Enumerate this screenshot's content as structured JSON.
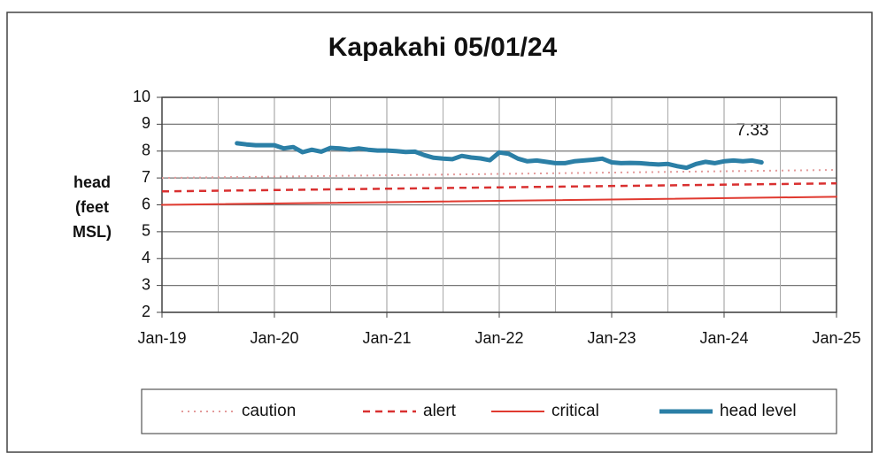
{
  "chart_data": {
    "type": "line",
    "title": "Kapakahi 05/01/24",
    "ylabel": [
      "head",
      "(feet",
      "MSL)"
    ],
    "annotation": "7.33",
    "xlim": [
      "2019-01",
      "2025-01"
    ],
    "xticks": [
      {
        "value": "2019-01",
        "label": "Jan-19"
      },
      {
        "value": "2020-01",
        "label": "Jan-20"
      },
      {
        "value": "2021-01",
        "label": "Jan-21"
      },
      {
        "value": "2022-01",
        "label": "Jan-22"
      },
      {
        "value": "2023-01",
        "label": "Jan-23"
      },
      {
        "value": "2024-01",
        "label": "Jan-24"
      },
      {
        "value": "2025-01",
        "label": "Jan-25"
      }
    ],
    "ylim": [
      2,
      10
    ],
    "yticks": [
      2,
      3,
      4,
      5,
      6,
      7,
      8,
      9,
      10
    ],
    "grid": true,
    "legend": "bottom",
    "series": [
      {
        "name": "caution",
        "color": "#e39a9a",
        "style": "dotted",
        "width": 2,
        "x": [
          "2019-01",
          "2025-01"
        ],
        "values": [
          7.0,
          7.3
        ]
      },
      {
        "name": "alert",
        "color": "#d93030",
        "style": "dashed",
        "width": 2.5,
        "x": [
          "2019-01",
          "2025-01"
        ],
        "values": [
          6.5,
          6.8
        ]
      },
      {
        "name": "critical",
        "color": "#e03a30",
        "style": "solid",
        "width": 2,
        "x": [
          "2019-01",
          "2025-01"
        ],
        "values": [
          6.0,
          6.3
        ]
      },
      {
        "name": "head level",
        "color": "#2b7fa6",
        "style": "solid",
        "width": 5,
        "x": [
          "2019-09",
          "2019-10",
          "2019-11",
          "2019-12",
          "2020-01",
          "2020-02",
          "2020-03",
          "2020-04",
          "2020-05",
          "2020-06",
          "2020-07",
          "2020-08",
          "2020-09",
          "2020-10",
          "2020-11",
          "2020-12",
          "2021-01",
          "2021-02",
          "2021-03",
          "2021-04",
          "2021-05",
          "2021-06",
          "2021-07",
          "2021-08",
          "2021-09",
          "2021-10",
          "2021-11",
          "2021-12",
          "2022-01",
          "2022-02",
          "2022-03",
          "2022-04",
          "2022-05",
          "2022-06",
          "2022-07",
          "2022-08",
          "2022-09",
          "2022-10",
          "2022-11",
          "2022-12",
          "2023-01",
          "2023-02",
          "2023-03",
          "2023-04",
          "2023-05",
          "2023-06",
          "2023-07",
          "2023-08",
          "2023-09",
          "2023-10",
          "2023-11",
          "2023-12",
          "2024-01",
          "2024-02",
          "2024-03",
          "2024-04",
          "2024-05"
        ],
        "values": [
          8.29,
          8.25,
          8.22,
          8.22,
          8.22,
          8.1,
          8.15,
          7.96,
          8.05,
          7.98,
          8.12,
          8.1,
          8.05,
          8.1,
          8.05,
          8.02,
          8.02,
          8.0,
          7.97,
          7.98,
          7.85,
          7.75,
          7.72,
          7.7,
          7.82,
          7.76,
          7.73,
          7.66,
          7.95,
          7.9,
          7.72,
          7.62,
          7.65,
          7.6,
          7.55,
          7.55,
          7.62,
          7.65,
          7.68,
          7.72,
          7.58,
          7.55,
          7.56,
          7.55,
          7.52,
          7.5,
          7.52,
          7.44,
          7.38,
          7.52,
          7.6,
          7.55,
          7.62,
          7.65,
          7.62,
          7.65,
          7.58
        ]
      }
    ]
  }
}
